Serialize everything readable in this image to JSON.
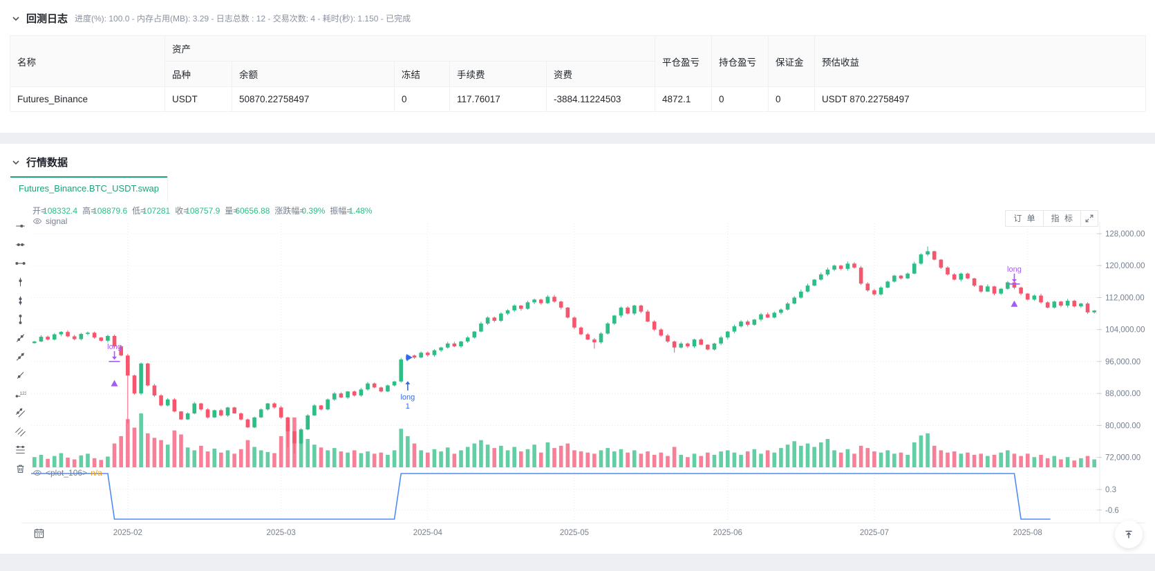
{
  "backtest": {
    "title": "回测日志",
    "meta": "进度(%): 100.0  - 内存占用(MB): 3.29 - 日志总数 : 12 - 交易次数:  4 - 耗时(秒): 1.150 - 已完成",
    "table": {
      "headers": {
        "name": "名称",
        "asset_group": "资产",
        "variety": "品种",
        "balance": "余额",
        "frozen": "冻结",
        "fee": "手续费",
        "funding": "资费",
        "closed_pnl": "平仓盈亏",
        "open_pnl": "持仓盈亏",
        "margin": "保证金",
        "est_profit": "预估收益"
      },
      "row": {
        "name": "Futures_Binance",
        "variety": "USDT",
        "balance": "50870.22758497",
        "frozen": "0",
        "fee": "117.76017",
        "funding": "-3884.11224503",
        "closed_pnl": "4872.1",
        "open_pnl": "0",
        "margin": "0",
        "est_profit": "USDT 870.22758497"
      }
    }
  },
  "market": {
    "title": "行情数据",
    "tab": "Futures_Binance.BTC_USDT.swap",
    "buttons": {
      "orders": "订 单",
      "indicators": "指 标"
    },
    "signal_label": "signal"
  },
  "chart_data": {
    "type": "candlestick",
    "symbol": "Futures_Binance.BTC_USDT.swap",
    "legend": [
      {
        "label": "开=",
        "value": "108332.4"
      },
      {
        "label": "高=",
        "value": "108879.6"
      },
      {
        "label": "低=",
        "value": "107281"
      },
      {
        "label": "收=",
        "value": "108757.9"
      },
      {
        "label": "量=",
        "value": "60656.88"
      },
      {
        "label": "涨跌幅=",
        "value": "0.39%"
      },
      {
        "label": "振幅=",
        "value": "1.48%"
      }
    ],
    "price_axis": {
      "ticks": [
        {
          "value": 128000,
          "label": "128,000.00"
        },
        {
          "value": 120000,
          "label": "120,000.00"
        },
        {
          "value": 112000,
          "label": "112,000.00"
        },
        {
          "value": 104000,
          "label": "104,000.00"
        },
        {
          "value": 96000,
          "label": "96,000.00"
        },
        {
          "value": 88000,
          "label": "88,000.00"
        },
        {
          "value": 80000,
          "label": "80,000.00"
        },
        {
          "value": 72000,
          "label": "72,000.00"
        }
      ]
    },
    "time_axis": {
      "ticks": [
        {
          "index": 14,
          "label": "2025-02"
        },
        {
          "index": 37,
          "label": "2025-03"
        },
        {
          "index": 59,
          "label": "2025-04"
        },
        {
          "index": 81,
          "label": "2025-05"
        },
        {
          "index": 104,
          "label": "2025-06"
        },
        {
          "index": 126,
          "label": "2025-07"
        },
        {
          "index": 149,
          "label": "2025-08"
        }
      ]
    },
    "candles": {
      "closes": [
        101000,
        102200,
        101500,
        102800,
        103400,
        102300,
        101600,
        102900,
        103200,
        102000,
        101200,
        102400,
        99800,
        97500,
        92500,
        88000,
        95500,
        90000,
        87500,
        85000,
        86500,
        83500,
        81500,
        83000,
        85500,
        84000,
        82000,
        83800,
        82500,
        84500,
        83000,
        81500,
        79500,
        82000,
        84000,
        85500,
        84500,
        82000,
        78500,
        75500,
        79000,
        82500,
        85000,
        84000,
        86500,
        88000,
        87000,
        88500,
        87500,
        89000,
        90500,
        89500,
        88500,
        90000,
        91000,
        96500,
        97500,
        97000,
        98200,
        97600,
        98800,
        99500,
        100500,
        99800,
        101000,
        102000,
        103500,
        105500,
        107000,
        106200,
        108000,
        108800,
        110000,
        109200,
        110800,
        111500,
        110600,
        112200,
        111000,
        109500,
        107000,
        104500,
        102800,
        101500,
        100800,
        103000,
        105500,
        107500,
        109500,
        108000,
        110000,
        108500,
        106000,
        104000,
        102500,
        101000,
        99500,
        100500,
        99800,
        101500,
        100200,
        99000,
        100500,
        102000,
        103500,
        104800,
        106000,
        105200,
        106500,
        107800,
        107000,
        108200,
        109000,
        110500,
        112000,
        113500,
        115000,
        116500,
        117800,
        119000,
        120000,
        119200,
        120500,
        119500,
        115500,
        113800,
        112800,
        114500,
        116000,
        117500,
        116800,
        118000,
        120500,
        122800,
        123600,
        121500,
        119500,
        117800,
        116500,
        118000,
        116800,
        115000,
        113500,
        114800,
        113000,
        114200,
        115800,
        114500,
        113000,
        111500,
        112500,
        110800,
        109500,
        111000,
        110000,
        111200,
        109800,
        110500,
        108300,
        108758
      ],
      "volumes": [
        18,
        22,
        15,
        20,
        25,
        17,
        14,
        21,
        24,
        16,
        13,
        19,
        42,
        55,
        85,
        70,
        95,
        60,
        52,
        48,
        40,
        65,
        58,
        35,
        30,
        38,
        28,
        33,
        26,
        30,
        24,
        32,
        48,
        36,
        30,
        27,
        25,
        55,
        75,
        88,
        62,
        50,
        40,
        35,
        30,
        34,
        28,
        26,
        30,
        25,
        28,
        24,
        26,
        22,
        30,
        68,
        55,
        42,
        30,
        26,
        32,
        28,
        35,
        24,
        30,
        36,
        42,
        48,
        40,
        34,
        38,
        30,
        36,
        28,
        32,
        40,
        26,
        44,
        34,
        38,
        42,
        30,
        28,
        26,
        24,
        30,
        34,
        28,
        32,
        26,
        30,
        24,
        28,
        22,
        26,
        20,
        36,
        22,
        18,
        24,
        20,
        26,
        22,
        28,
        30,
        26,
        22,
        28,
        32,
        24,
        30,
        26,
        34,
        40,
        46,
        38,
        42,
        36,
        44,
        50,
        30,
        26,
        32,
        24,
        38,
        34,
        28,
        26,
        30,
        24,
        26,
        22,
        44,
        56,
        60,
        38,
        30,
        26,
        28,
        24,
        26,
        22,
        24,
        20,
        22,
        26,
        30,
        24,
        20,
        24,
        18,
        22,
        16,
        20,
        14,
        18,
        12,
        16,
        20,
        14
      ],
      "wick_overrides": {
        "14": {
          "low": 80500
        },
        "38": {
          "low": 74500
        },
        "39": {
          "low": 73000
        },
        "84": {
          "low": 99200
        },
        "96": {
          "low": 98200
        },
        "134": {
          "high": 124800
        }
      }
    },
    "signal": {
      "name": "<plot_106>",
      "current": "n/a",
      "axis_ticks": [
        {
          "value": 0.3,
          "label": "0.3"
        },
        {
          "value": -0.6,
          "label": "-0.6"
        }
      ],
      "segments": [
        {
          "from": 0,
          "to": 11,
          "value": 1
        },
        {
          "from": 12,
          "to": 54,
          "value": -1
        },
        {
          "from": 55,
          "to": 147,
          "value": 1
        },
        {
          "from": 148,
          "to": 152,
          "value": -1
        }
      ]
    },
    "markers": [
      {
        "kind": "entry-down",
        "index": 12,
        "price": 96000,
        "label": "long",
        "color": "#a45bf5"
      },
      {
        "kind": "triangle-up",
        "index": 12,
        "price": 90500,
        "color": "#a45bf5"
      },
      {
        "kind": "flag-right",
        "index": 56,
        "price": 97000,
        "color": "#2f68f4"
      },
      {
        "kind": "entry-up",
        "index": 56,
        "price": 91500,
        "label": "long",
        "label2": "1",
        "color": "#2f68f4"
      },
      {
        "kind": "entry-down",
        "index": 147,
        "price": 115400,
        "label": "long",
        "color": "#a45bf5"
      },
      {
        "kind": "triangle-up",
        "index": 147,
        "price": 110400,
        "color": "#a45bf5"
      }
    ],
    "colors": {
      "up": "#2dbd85",
      "down": "#f5566d",
      "volume_up": "#63cda4",
      "volume_down": "#f78098",
      "signal_line": "#4e8bf4",
      "grid": "#e5e8ee",
      "axis_text": "#76808f"
    }
  }
}
